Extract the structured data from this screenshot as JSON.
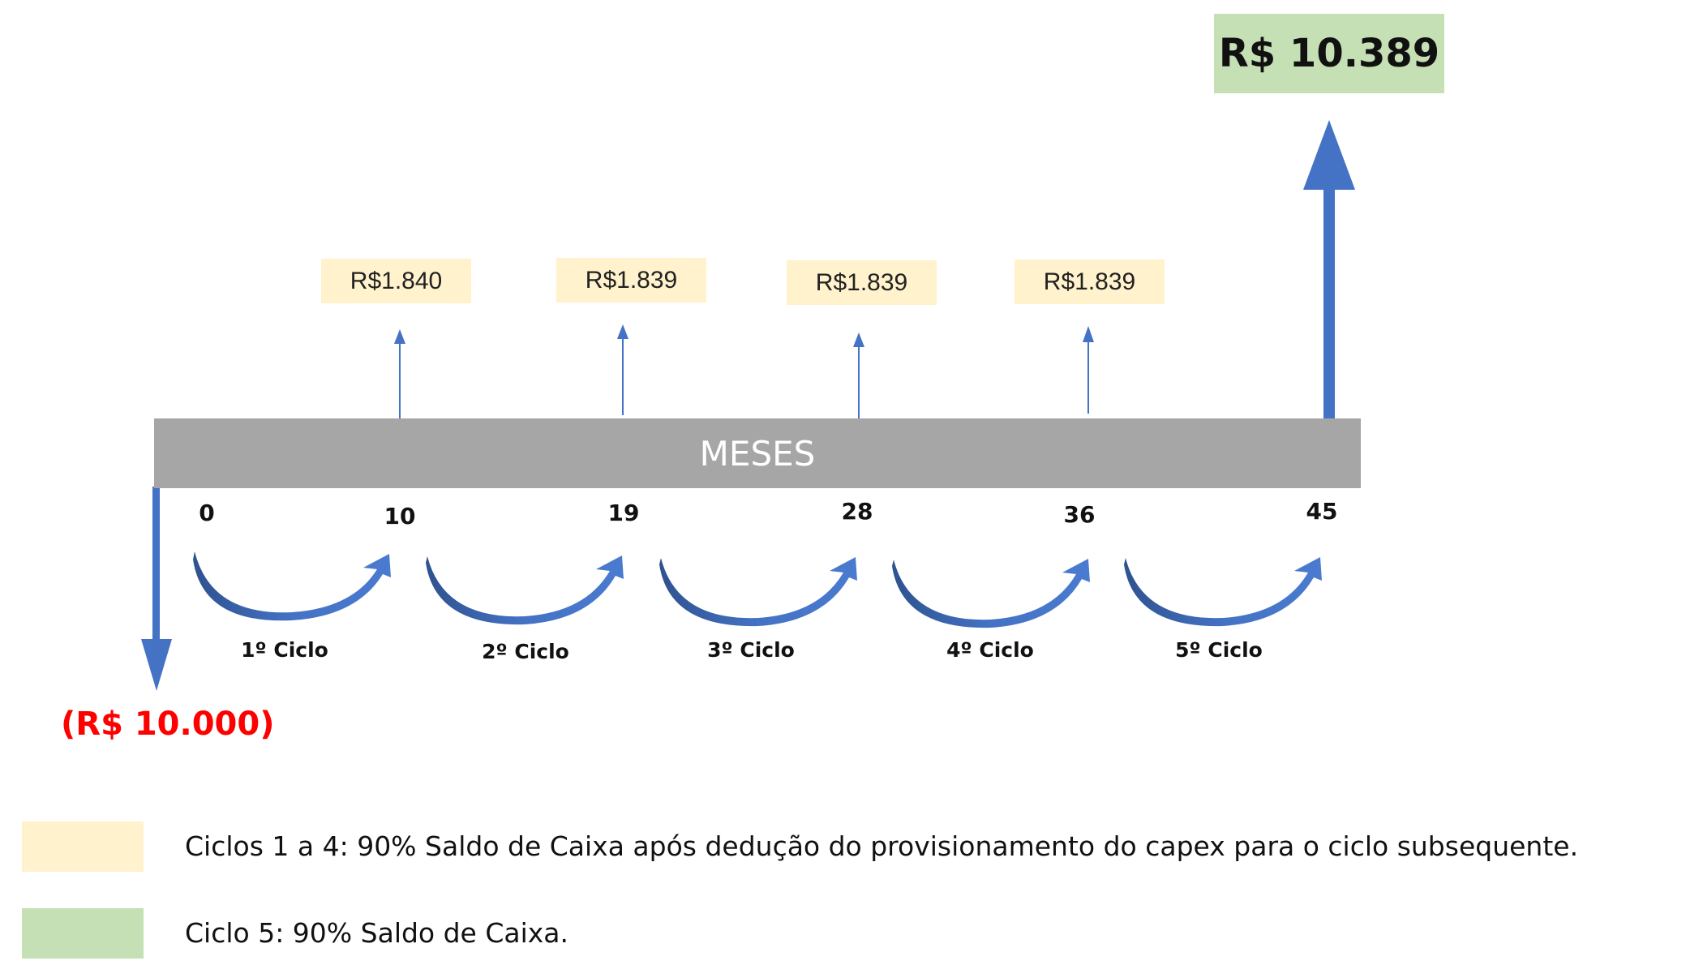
{
  "timeline": {
    "label": "MESES"
  },
  "initial_investment": "(R$ 10.000)",
  "final_value": "R$ 10.389",
  "months": [
    "0",
    "10",
    "19",
    "28",
    "36",
    "45"
  ],
  "cash_flows": [
    {
      "month": "10",
      "value": "R$1.840"
    },
    {
      "month": "19",
      "value": "R$1.839"
    },
    {
      "month": "28",
      "value": "R$1.839"
    },
    {
      "month": "36",
      "value": "R$1.839"
    }
  ],
  "cycles": [
    "1º Ciclo",
    "2º Ciclo",
    "3º Ciclo",
    "4º Ciclo",
    "5º Ciclo"
  ],
  "legend": [
    {
      "color": "#fff2cc",
      "text": "Ciclos 1 a 4: 90% Saldo de Caixa após dedução do provisionamento do capex para o ciclo subsequente."
    },
    {
      "color": "#c5e0b4",
      "text": "Ciclo 5: 90% Saldo de Caixa."
    }
  ],
  "colors": {
    "arrow": "#4472c4",
    "arrow_dark": "#2f528f",
    "bar": "#a6a6a6",
    "negative": "#ff0000"
  }
}
